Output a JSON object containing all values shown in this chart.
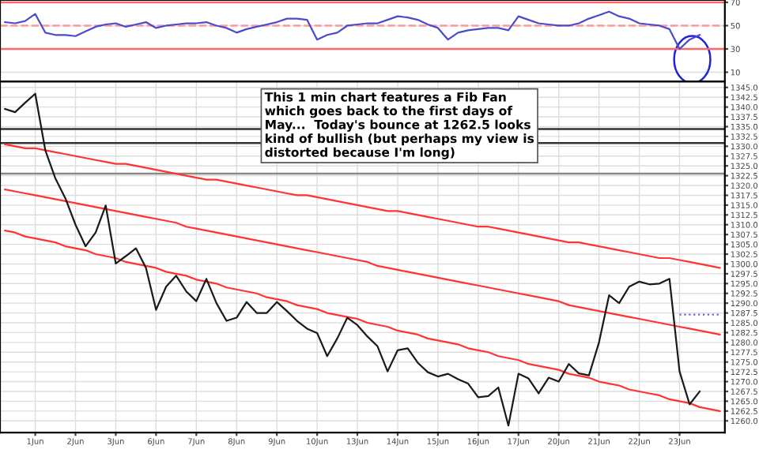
{
  "chart_data": [
    {
      "type": "line",
      "ylim": [
        2,
        72
      ],
      "yticks": [
        10,
        30,
        50,
        70
      ],
      "tick_labels": "y",
      "grid": "y",
      "marker": "none",
      "categories": [
        null,
        null,
        null,
        null,
        null,
        null,
        null,
        null,
        null,
        null,
        null,
        null,
        null,
        null,
        null,
        null,
        null,
        null,
        null,
        null,
        null,
        null,
        null,
        null,
        null,
        null,
        null,
        null,
        null,
        null,
        null,
        null,
        null,
        null,
        null,
        null,
        null,
        null,
        null,
        null,
        null,
        null,
        null,
        null,
        null,
        null,
        null,
        null,
        null,
        null,
        null,
        null,
        null,
        null,
        null,
        null,
        null,
        null,
        null,
        null,
        null,
        null,
        null,
        null,
        null,
        null,
        null,
        null,
        null,
        null,
        null,
        null
      ],
      "ref_lines": [
        {
          "axis": "y",
          "value": 70,
          "color": "#ff6666",
          "line_style": "solid"
        },
        {
          "axis": "y",
          "value": 50,
          "color": "#ff9999",
          "line_style": "dashed"
        },
        {
          "axis": "y",
          "value": 30,
          "color": "#ff6666",
          "line_style": "solid"
        }
      ],
      "series": [
        {
          "color": "#4b4bcc",
          "values": [
            53,
            52,
            54,
            60,
            44,
            42,
            42,
            41,
            45,
            49,
            51,
            52,
            49,
            51,
            53,
            48,
            50,
            51,
            52,
            52,
            53,
            50,
            48,
            44,
            47,
            49,
            51,
            53,
            56,
            56,
            55,
            38,
            42,
            44,
            50,
            51,
            52,
            52,
            55,
            58,
            57,
            55,
            51,
            48,
            38,
            44,
            46,
            47,
            48,
            48,
            46,
            58,
            55,
            52,
            51,
            50,
            50,
            52,
            56,
            59,
            62,
            58,
            56,
            52,
            51,
            50,
            47,
            30,
            38,
            42,
            null,
            null
          ]
        }
      ]
    },
    {
      "type": "line",
      "ylim": [
        1257,
        1346.5
      ],
      "yticks": [
        {
          "value": 1260,
          "label": "1260.0"
        },
        {
          "value": 1262.5,
          "label": "1262.5"
        },
        {
          "value": 1265,
          "label": "1265.0"
        },
        {
          "value": 1267.5,
          "label": "1267.5"
        },
        {
          "value": 1270,
          "label": "1270.0"
        },
        {
          "value": 1272.5,
          "label": "1272.5"
        },
        {
          "value": 1275,
          "label": "1275.0"
        },
        {
          "value": 1277.5,
          "label": "1277.5"
        },
        {
          "value": 1280,
          "label": "1280.0"
        },
        {
          "value": 1282.5,
          "label": "1282.5"
        },
        {
          "value": 1285,
          "label": "1285.0"
        },
        {
          "value": 1287.5,
          "label": "1287.5"
        },
        {
          "value": 1290,
          "label": "1290.0"
        },
        {
          "value": 1292.5,
          "label": "1292.5"
        },
        {
          "value": 1295,
          "label": "1295.0"
        },
        {
          "value": 1297.5,
          "label": "1297.5"
        },
        {
          "value": 1300,
          "label": "1300.0"
        },
        {
          "value": 1302.5,
          "label": "1302.5"
        },
        {
          "value": 1305,
          "label": "1305.0"
        },
        {
          "value": 1307.5,
          "label": "1307.5"
        },
        {
          "value": 1310,
          "label": "1310.0"
        },
        {
          "value": 1312.5,
          "label": "1312.5"
        },
        {
          "value": 1315,
          "label": "1315.0"
        },
        {
          "value": 1317.5,
          "label": "1317.5"
        },
        {
          "value": 1320,
          "label": "1320.0"
        },
        {
          "value": 1322.5,
          "label": "1322.5"
        },
        {
          "value": 1325,
          "label": "1325.0"
        },
        {
          "value": 1327.5,
          "label": "1327.5"
        },
        {
          "value": 1330,
          "label": "1330.0"
        },
        {
          "value": 1332.5,
          "label": "1332.5"
        },
        {
          "value": 1335,
          "label": "1335.0"
        },
        {
          "value": 1337.5,
          "label": "1337.5"
        },
        {
          "value": 1340,
          "label": "1340.0"
        },
        {
          "value": 1342.5,
          "label": "1342.5"
        },
        {
          "value": 1345,
          "label": "1345.0"
        }
      ],
      "categories": [
        null,
        null,
        null,
        "1Jun",
        null,
        null,
        null,
        "2Jun",
        null,
        null,
        null,
        "3Jun",
        null,
        null,
        null,
        "6Jun",
        null,
        null,
        null,
        "7Jun",
        null,
        null,
        null,
        "8Jun",
        null,
        null,
        null,
        "9Jun",
        null,
        null,
        null,
        "10Jun",
        null,
        null,
        null,
        "13Jun",
        null,
        null,
        null,
        "14Jun",
        null,
        null,
        null,
        "15Jun",
        null,
        null,
        null,
        "16Jun",
        null,
        null,
        null,
        "17Jun",
        null,
        null,
        null,
        "20Jun",
        null,
        null,
        null,
        "21Jun",
        null,
        null,
        null,
        "22Jun",
        null,
        null,
        null,
        "23Jun",
        null,
        null,
        null,
        null
      ],
      "grid": true,
      "marker": "none",
      "ref_lines": [
        {
          "axis": "y",
          "value": 1334.4,
          "color": "#333333"
        },
        {
          "axis": "y",
          "value": 1330.8,
          "color": "#333333"
        },
        {
          "axis": "y",
          "value": 1323,
          "color": "#888888"
        }
      ],
      "annotations": [
        "This 1 min chart features a Fib Fan\nwhich goes back to the first days of\nMay...  Today's bounce at 1262.5 looks\nkind of bullish (but perhaps my view is\ndistorted because I'm long)"
      ],
      "series": [
        {
          "color": "#ff3333",
          "values": [
            1330.5,
            1330,
            1329.5,
            1329.5,
            1329,
            1328.5,
            1328,
            1327.5,
            1327,
            1326.5,
            1326,
            1325.5,
            1325.5,
            1325,
            1324.5,
            1324,
            1323.5,
            1323,
            1322.5,
            1322,
            1321.5,
            1321.5,
            1321,
            1320.5,
            1320,
            1319.5,
            1319,
            1318.5,
            1318,
            1317.5,
            1317.5,
            1317,
            1316.5,
            1316,
            1315.5,
            1315,
            1314.5,
            1314,
            1313.5,
            1313.5,
            1313,
            1312.5,
            1312,
            1311.5,
            1311,
            1310.5,
            1310,
            1309.5,
            1309.5,
            1309,
            1308.5,
            1308,
            1307.5,
            1307,
            1306.5,
            1306,
            1305.5,
            1305.5,
            1305,
            1304.5,
            1304,
            1303.5,
            1303,
            1302.5,
            1302,
            1301.5,
            1301.5,
            1301,
            1300.5,
            1300,
            1299.5,
            1299
          ]
        },
        {
          "color": "#ff3333",
          "values": [
            1319,
            1318.5,
            1318,
            1317.5,
            1317,
            1316.5,
            1316,
            1315.5,
            1315,
            1314.5,
            1314,
            1313.5,
            1313,
            1312.5,
            1312,
            1311.5,
            1311,
            1310.5,
            1309.5,
            1309,
            1308.5,
            1308,
            1307.5,
            1307,
            1306.5,
            1306,
            1305.5,
            1305,
            1304.5,
            1304,
            1303.5,
            1303,
            1302.5,
            1302,
            1301.5,
            1301,
            1300.5,
            1299.5,
            1299,
            1298.5,
            1298,
            1297.5,
            1297,
            1296.5,
            1296,
            1295.5,
            1295,
            1294.5,
            1294,
            1293.5,
            1293,
            1292.5,
            1292,
            1291.5,
            1291,
            1290.5,
            1289.5,
            1289,
            1288.5,
            1288,
            1287.5,
            1287,
            1286.5,
            1286,
            1285.5,
            1285,
            1284.5,
            1284,
            1283.5,
            1283,
            1282.5,
            1282
          ]
        },
        {
          "color": "#ff3333",
          "values": [
            1308.5,
            1308,
            1307,
            1306.5,
            1306,
            1305.5,
            1304.5,
            1304,
            1303.5,
            1302.5,
            1302,
            1301.5,
            1300.5,
            1300,
            1299.5,
            1299,
            1298,
            1297.5,
            1297,
            1296,
            1295.5,
            1295,
            1294,
            1293.5,
            1293,
            1292.5,
            1291.5,
            1291,
            1290.5,
            1289.5,
            1289,
            1288.5,
            1287.5,
            1287,
            1286.5,
            1286,
            1285,
            1284.5,
            1284,
            1283,
            1282.5,
            1282,
            1281,
            1280.5,
            1280,
            1279.5,
            1278.5,
            1278,
            1277.5,
            1276.5,
            1276,
            1275.5,
            1274.5,
            1274,
            1273.5,
            1273,
            1272,
            1271.5,
            1271,
            1270,
            1269.5,
            1269,
            1268,
            1267.5,
            1267,
            1266.5,
            1265.5,
            1265,
            1264.5,
            1263.5,
            1263,
            1262.5
          ]
        },
        {
          "color": "#6666dd",
          "line_style": "dotted",
          "values": [
            null,
            null,
            null,
            null,
            null,
            null,
            null,
            null,
            null,
            null,
            null,
            null,
            null,
            null,
            null,
            null,
            null,
            null,
            null,
            null,
            null,
            null,
            null,
            null,
            null,
            null,
            null,
            null,
            null,
            null,
            null,
            null,
            null,
            null,
            null,
            null,
            null,
            null,
            null,
            null,
            null,
            null,
            null,
            null,
            null,
            null,
            null,
            null,
            null,
            null,
            null,
            null,
            null,
            null,
            null,
            null,
            null,
            null,
            null,
            null,
            null,
            null,
            null,
            null,
            null,
            null,
            null,
            1287.1,
            1287.1,
            1287.1,
            1287.1,
            1287.1
          ]
        },
        {
          "color": "#1a1a1a",
          "values": [
            1339.5,
            1338.7,
            1341.1,
            1343.4,
            1329,
            1321.8,
            1316.7,
            1310,
            1304.5,
            1308,
            1314.9,
            1300.1,
            1302,
            1304,
            1299,
            1288.3,
            1294.2,
            1297,
            1293,
            1290.5,
            1296.2,
            1290,
            1285.5,
            1286.3,
            1290.3,
            1287.5,
            1287.5,
            1290.3,
            1288,
            1285.5,
            1283.5,
            1282.4,
            1276.5,
            1281,
            1286.3,
            1284.4,
            1281.5,
            1279,
            1272.6,
            1278,
            1278.5,
            1274.8,
            1272.4,
            1271.3,
            1272,
            1270.6,
            1269.5,
            1266,
            1266.3,
            1268.5,
            1258.8,
            1272,
            1270.8,
            1267,
            1271,
            1270,
            1274.5,
            1272.1,
            1271.6,
            1280,
            1292,
            1290,
            1294.2,
            1295.5,
            1294.8,
            1295,
            1296.2,
            1272.6,
            1264.2,
            1267.5,
            null,
            null
          ]
        }
      ]
    }
  ]
}
